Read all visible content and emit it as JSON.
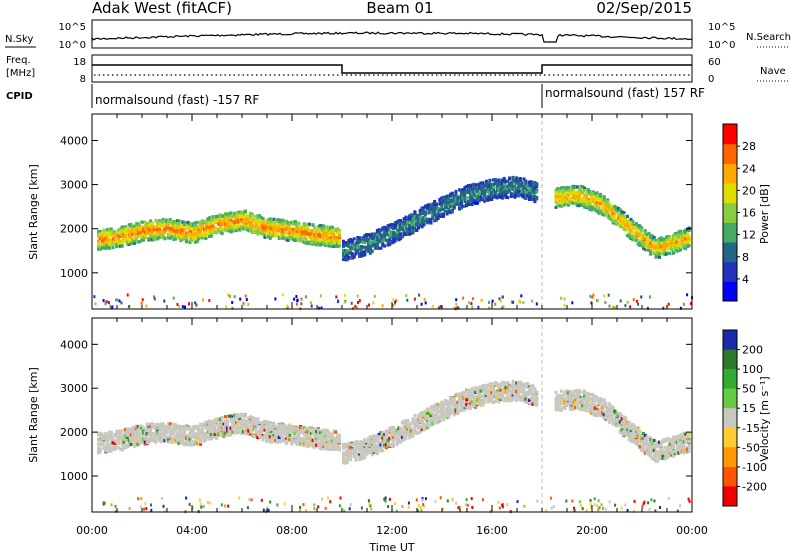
{
  "header": {
    "station": "Adak West (fitACF)",
    "beam": "Beam 01",
    "date": "02/Sep/2015"
  },
  "top_panels": {
    "nsky_label": "N.Sky",
    "nsearch_label": "N.Search",
    "noise_ticks_left": [
      "10^5",
      "10^0"
    ],
    "noise_ticks_right": [
      "10^5",
      "10^0"
    ],
    "freq_label": "Freq.",
    "freq_unit": "[MHz]",
    "freq_ticks": [
      "18",
      "8"
    ],
    "nave_label": "Nave",
    "nave_ticks": [
      "60",
      "0"
    ],
    "cpid_label": "CPID",
    "cpid_segments": [
      {
        "text": "normalsound (fast) -157 RF",
        "start_hour": 0,
        "end_hour": 18
      },
      {
        "text": "normalsound (fast) 157 RF",
        "start_hour": 18,
        "end_hour": 24
      }
    ]
  },
  "chart_data": [
    {
      "type": "heatmap",
      "title": "Power",
      "ylabel": "Slant Range [km]",
      "xlabel": "",
      "x_range_hours": [
        0,
        24
      ],
      "ylim": [
        180,
        4600
      ],
      "yticks": [
        1000,
        2000,
        3000,
        4000
      ],
      "colorbar": {
        "label": "Power [dB]",
        "ticks": [
          "28",
          "24",
          "20",
          "16",
          "12",
          "8",
          "4"
        ],
        "range": [
          0,
          30
        ],
        "colors": [
          "#0000ff",
          "#2233bb",
          "#226688",
          "#44aa66",
          "#88cc44",
          "#dddd00",
          "#ffaa00",
          "#ff6600",
          "#ff0000"
        ]
      },
      "echo_tracks": [
        {
          "hours": [
            0.2,
            1,
            2,
            3,
            4,
            5,
            6,
            7,
            8,
            9,
            9.9
          ],
          "range_km": [
            1750,
            1800,
            1950,
            2000,
            1900,
            2100,
            2200,
            2000,
            1950,
            1850,
            1800
          ],
          "power_db": 26
        },
        {
          "hours": [
            10,
            11,
            12,
            13,
            14,
            15,
            16,
            17,
            17.8
          ],
          "range_km": [
            1500,
            1650,
            1900,
            2200,
            2500,
            2750,
            2900,
            2950,
            2800
          ],
          "power_db": 10
        },
        {
          "hours": [
            18.5,
            19.5,
            20.5,
            21.5,
            22.5,
            23.9
          ],
          "range_km": [
            2700,
            2750,
            2500,
            2000,
            1550,
            1800
          ],
          "power_db": 24
        }
      ]
    },
    {
      "type": "heatmap",
      "title": "Velocity",
      "ylabel": "Slant Range [km]",
      "xlabel": "Time UT",
      "x_range_hours": [
        0,
        24
      ],
      "xticks": [
        "00:00",
        "04:00",
        "08:00",
        "12:00",
        "16:00",
        "20:00",
        "00:00"
      ],
      "ylim": [
        180,
        4600
      ],
      "yticks": [
        1000,
        2000,
        3000,
        4000
      ],
      "colorbar": {
        "label": "Velocity [m s⁻¹]",
        "ticks": [
          "200",
          "100",
          "50",
          "15",
          "-15",
          "-50",
          "-100",
          "-200"
        ],
        "colors": [
          "#1a2aa8",
          "#2a7a2a",
          "#33aa33",
          "#66cc44",
          "#c8c8c0",
          "#ffcc33",
          "#ff9900",
          "#ff5500",
          "#ee0000"
        ]
      },
      "echo_tracks": [
        {
          "hours": [
            0.2,
            1,
            2,
            3,
            4,
            5,
            6,
            7,
            8,
            9,
            9.9
          ],
          "range_km": [
            1750,
            1800,
            1950,
            2000,
            1900,
            2100,
            2200,
            2000,
            1950,
            1850,
            1800
          ],
          "velocity_ms": 0
        },
        {
          "hours": [
            10,
            11,
            12,
            13,
            14,
            15,
            16,
            17,
            17.8
          ],
          "range_km": [
            1500,
            1650,
            1900,
            2200,
            2500,
            2750,
            2900,
            2950,
            2800
          ],
          "velocity_ms": 0
        },
        {
          "hours": [
            18.5,
            19.5,
            20.5,
            21.5,
            22.5,
            23.9
          ],
          "range_km": [
            2700,
            2750,
            2500,
            2000,
            1550,
            1800
          ],
          "velocity_ms": 0
        }
      ]
    }
  ]
}
